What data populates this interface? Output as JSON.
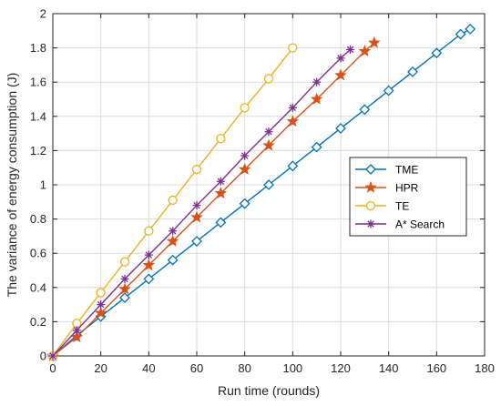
{
  "chart_data": {
    "type": "line",
    "title": "",
    "xlabel": "Run time (rounds)",
    "ylabel": "The variance of energy consumption (J)",
    "xlim": [
      0,
      180
    ],
    "ylim": [
      0,
      2
    ],
    "xticks": [
      0,
      20,
      40,
      60,
      80,
      100,
      120,
      140,
      160,
      180
    ],
    "yticks": [
      0,
      0.2,
      0.4,
      0.6,
      0.8,
      1,
      1.2,
      1.4,
      1.6,
      1.8,
      2
    ],
    "xtick_labels": [
      "0",
      "20",
      "40",
      "60",
      "80",
      "100",
      "120",
      "140",
      "160",
      "180"
    ],
    "ytick_labels": [
      "0",
      "0.2",
      "0.4",
      "0.6",
      "0.8",
      "1",
      "1.2",
      "1.4",
      "1.6",
      "1.8",
      "2"
    ],
    "grid": true,
    "legend_position": "right",
    "series": [
      {
        "name": "TME",
        "color": "#0072BD",
        "marker": "diamond",
        "x": [
          0,
          10,
          20,
          30,
          40,
          50,
          60,
          70,
          80,
          90,
          100,
          110,
          120,
          130,
          140,
          150,
          160,
          170,
          174
        ],
        "y": [
          0,
          0.12,
          0.23,
          0.34,
          0.45,
          0.56,
          0.67,
          0.78,
          0.89,
          1.0,
          1.11,
          1.22,
          1.33,
          1.44,
          1.55,
          1.66,
          1.77,
          1.88,
          1.91
        ]
      },
      {
        "name": "HPR",
        "color": "#D95319",
        "marker": "star",
        "x": [
          0,
          10,
          20,
          30,
          40,
          50,
          60,
          70,
          80,
          90,
          100,
          110,
          120,
          130,
          134
        ],
        "y": [
          0,
          0.11,
          0.25,
          0.39,
          0.53,
          0.67,
          0.81,
          0.95,
          1.09,
          1.23,
          1.37,
          1.5,
          1.64,
          1.78,
          1.83
        ]
      },
      {
        "name": "TE",
        "color": "#EDB120",
        "marker": "circle",
        "x": [
          0,
          10,
          20,
          30,
          40,
          50,
          60,
          70,
          80,
          90,
          100
        ],
        "y": [
          0,
          0.19,
          0.37,
          0.55,
          0.73,
          0.91,
          1.09,
          1.27,
          1.45,
          1.62,
          1.8
        ]
      },
      {
        "name": "A* Search",
        "color": "#7E2F8E",
        "marker": "asterisk",
        "x": [
          0,
          10,
          20,
          30,
          40,
          50,
          60,
          70,
          80,
          90,
          100,
          110,
          120,
          124
        ],
        "y": [
          0,
          0.15,
          0.3,
          0.45,
          0.59,
          0.73,
          0.88,
          1.02,
          1.17,
          1.31,
          1.45,
          1.6,
          1.74,
          1.79
        ]
      }
    ]
  }
}
